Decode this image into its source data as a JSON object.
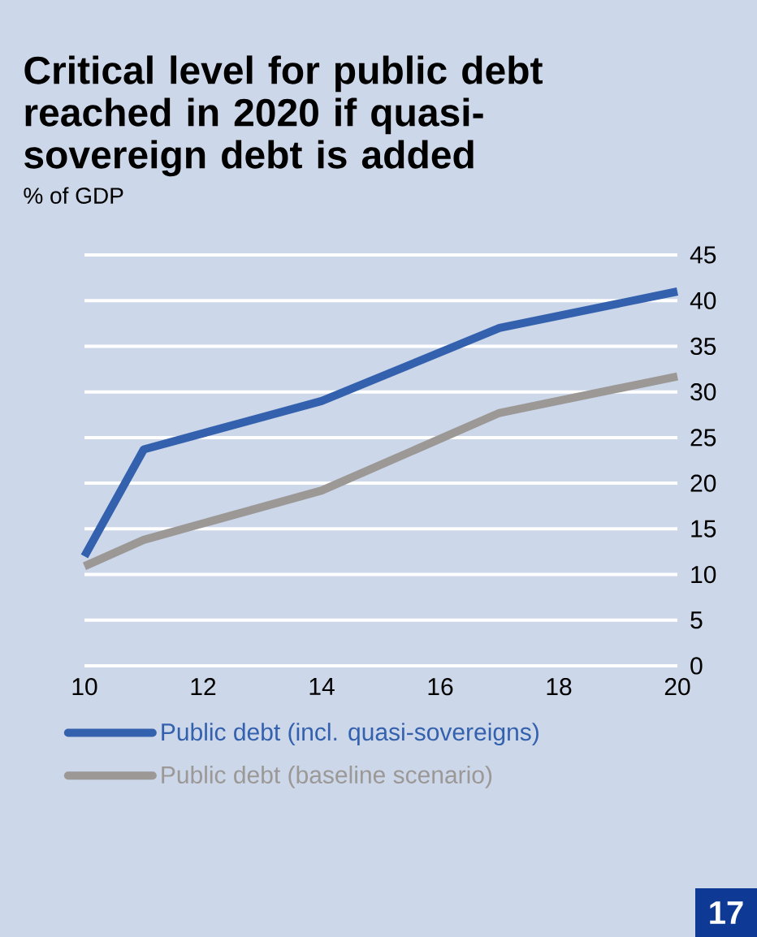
{
  "chart_data": {
    "type": "line",
    "title": "Critical level for public debt reached in 2020 if quasi-sovereign debt is added",
    "subtitle": "% of GDP",
    "xlim": [
      10,
      20
    ],
    "xticks": [
      10,
      12,
      14,
      16,
      18,
      20
    ],
    "ylim": [
      0,
      45
    ],
    "yticks": [
      0,
      5,
      10,
      15,
      20,
      25,
      30,
      35,
      40,
      45
    ],
    "grid": "y",
    "legend": "bottom",
    "line_style": "solid",
    "marker": "none",
    "series": [
      {
        "name": "Public debt (incl. quasi-sovereigns)",
        "color": "#3461ae",
        "x": [
          10,
          11,
          14,
          17,
          20
        ],
        "values": [
          12.0,
          23.7,
          29.0,
          37.0,
          41.0
        ]
      },
      {
        "name": "Public debt (baseline scenario)",
        "color": "#9b9896",
        "x": [
          10,
          11,
          14,
          17,
          20
        ],
        "values": [
          10.9,
          13.8,
          19.2,
          27.7,
          31.7
        ]
      }
    ],
    "annotations": [
      "17"
    ]
  }
}
